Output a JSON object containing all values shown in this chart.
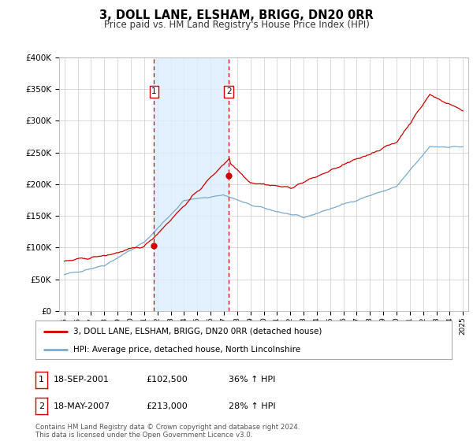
{
  "title": "3, DOLL LANE, ELSHAM, BRIGG, DN20 0RR",
  "subtitle": "Price paid vs. HM Land Registry's House Price Index (HPI)",
  "background_color": "#ffffff",
  "plot_bg_color": "#ffffff",
  "grid_color": "#cccccc",
  "sale1_date": 2001.75,
  "sale1_price": 102500,
  "sale1_label": "1",
  "sale2_date": 2007.38,
  "sale2_price": 213000,
  "sale2_label": "2",
  "legend_line1": "3, DOLL LANE, ELSHAM, BRIGG, DN20 0RR (detached house)",
  "legend_line2": "HPI: Average price, detached house, North Lincolnshire",
  "table_row1": [
    "1",
    "18-SEP-2001",
    "£102,500",
    "36% ↑ HPI"
  ],
  "table_row2": [
    "2",
    "18-MAY-2007",
    "£213,000",
    "28% ↑ HPI"
  ],
  "footnote": "Contains HM Land Registry data © Crown copyright and database right 2024.\nThis data is licensed under the Open Government Licence v3.0.",
  "line_color_red": "#cc0000",
  "line_color_blue": "#7aaacc",
  "shade_color": "#ddeeff",
  "ylim": [
    0,
    400000
  ],
  "xlim_start": 1994.6,
  "xlim_end": 2025.4
}
